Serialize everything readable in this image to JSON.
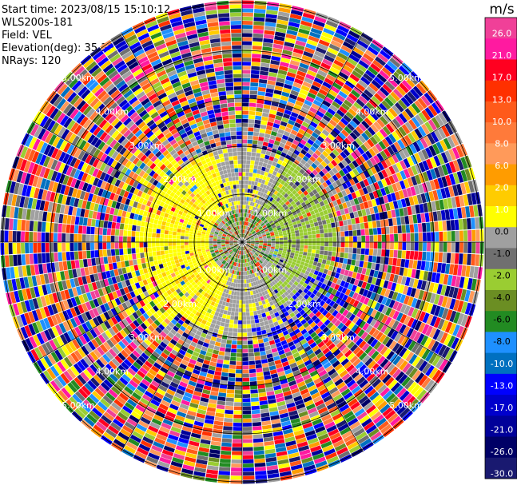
{
  "header": {
    "start_time": "Start time: 2023/08/15 15:10:12",
    "instrument": "WLS200s-181",
    "field": "Field: VEL",
    "elevation": "Elevation(deg): 35.30",
    "nrays": "NRays: 120"
  },
  "chart_data": {
    "type": "heatmap",
    "projection": "polar-ppi",
    "field": "VEL",
    "n_rays": 120,
    "range_ring_labels": [
      "1.00km",
      "2.00km",
      "3.00km",
      "4.00km",
      "5.00km"
    ],
    "colorbar": {
      "unit": "m/s",
      "tick_labels": [
        "26.0",
        "21.0",
        "17.0",
        "13.0",
        "10.0",
        "8.0",
        "6.0",
        "2.0",
        "1.0",
        "0.0",
        "-1.0",
        "-2.0",
        "-4.0",
        "-6.0",
        "-8.0",
        "-10.0",
        "-13.0",
        "-17.0",
        "-21.0",
        "-26.0",
        "-30.0"
      ],
      "colors": [
        "#f04098",
        "#ff1aa0",
        "#ff0020",
        "#ff3000",
        "#ff5a1a",
        "#ff7a3a",
        "#ff9a5a",
        "#ff9c00",
        "#ffcc00",
        "#ffff00",
        "#a0a0a0",
        "#707070",
        "#9acd32",
        "#6b8e23",
        "#228b22",
        "#1e90ff",
        "#0070c0",
        "#0000ff",
        "#0000cc",
        "#000099",
        "#000066",
        "#191970"
      ]
    }
  }
}
